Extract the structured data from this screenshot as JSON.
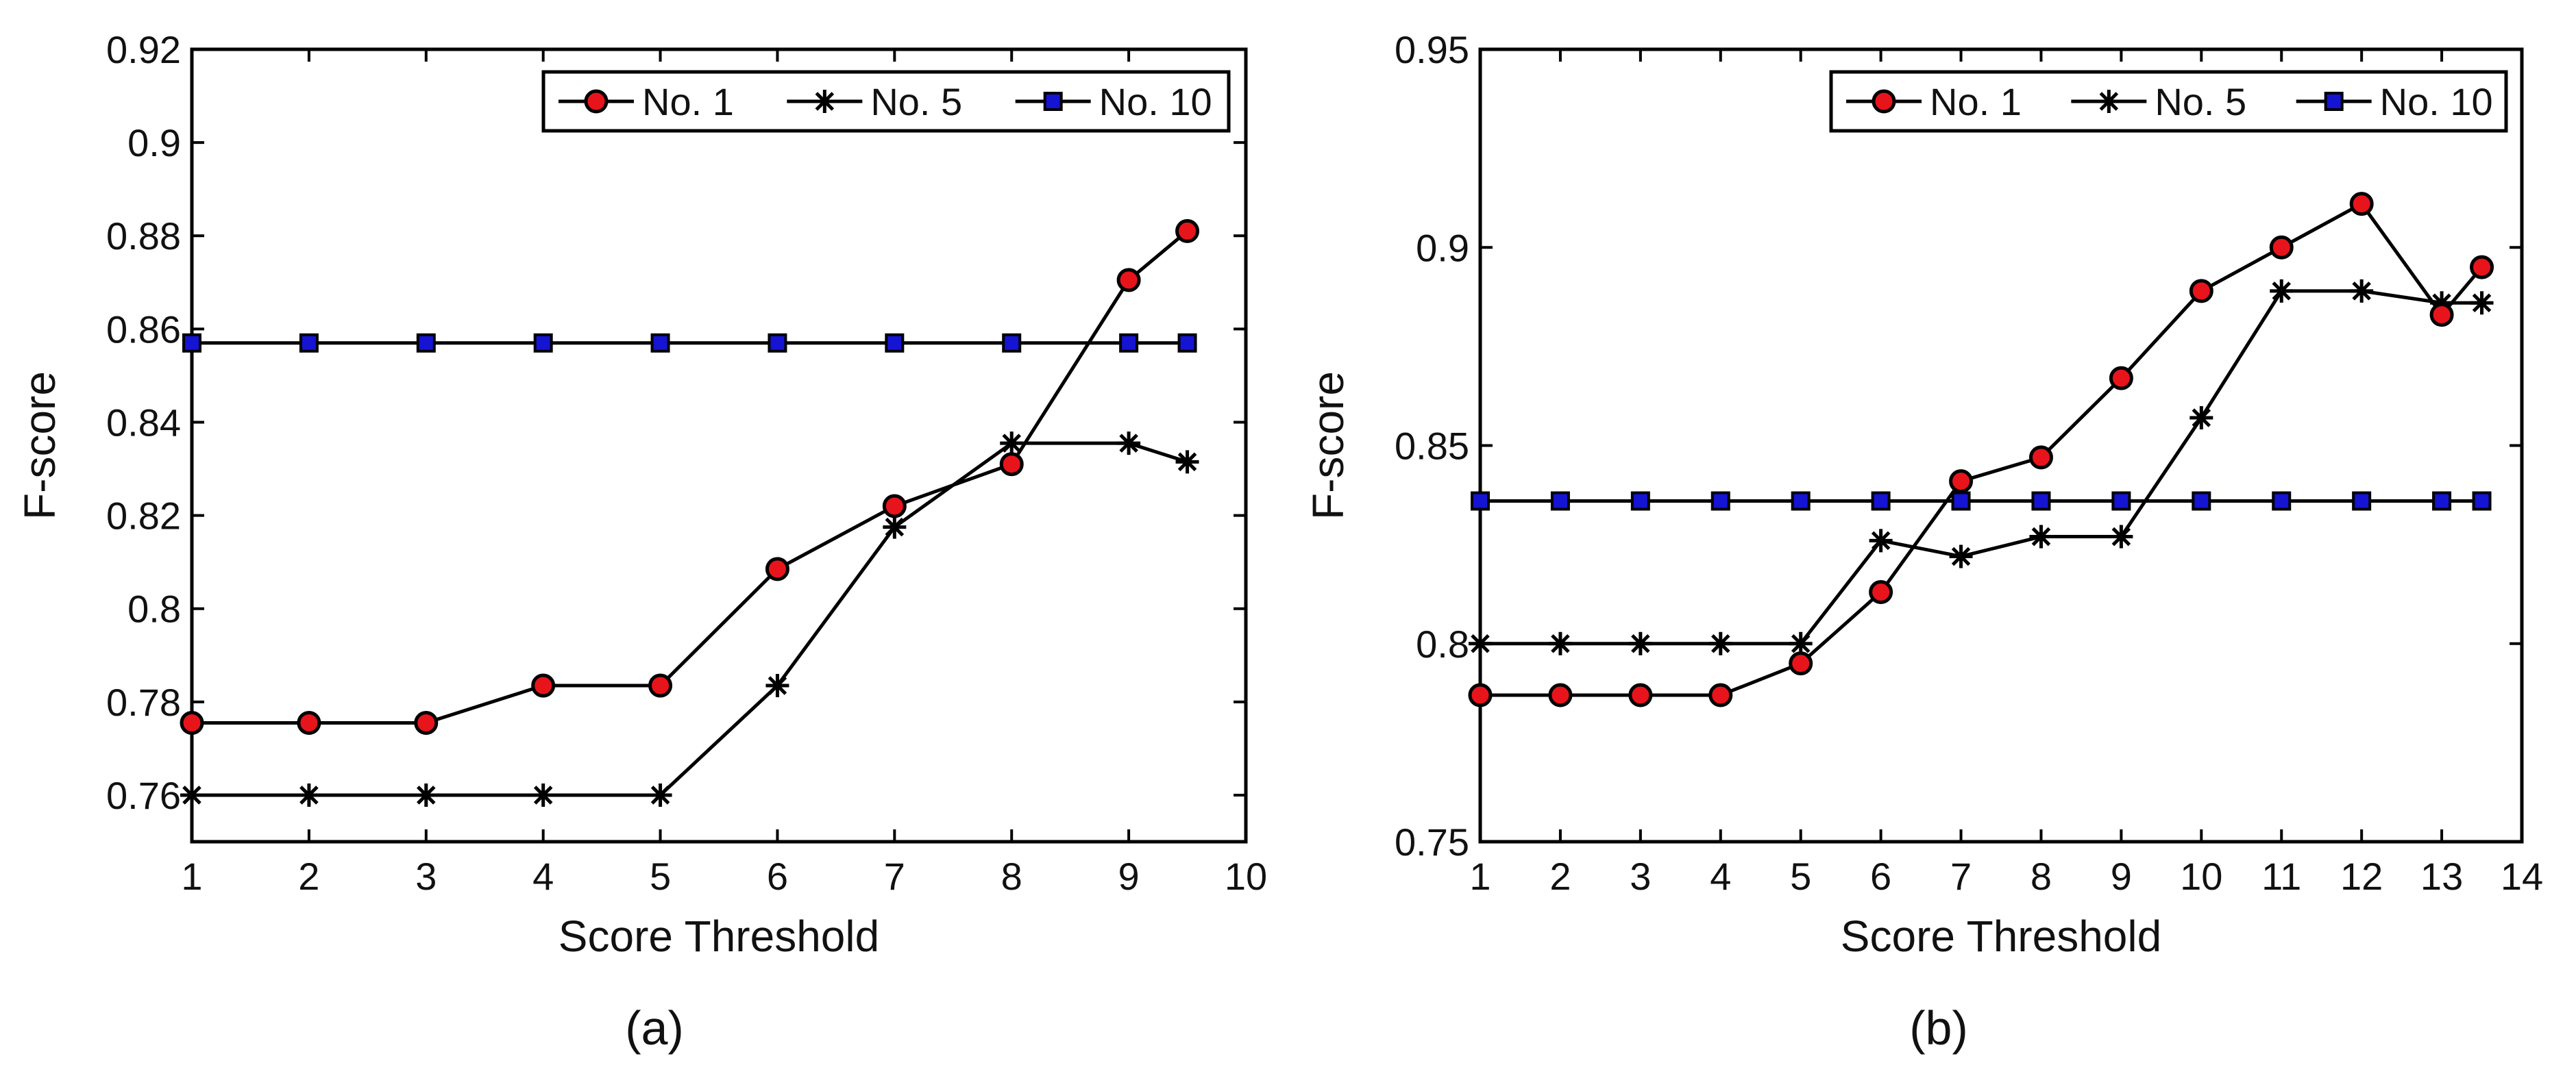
{
  "chart_data": [
    {
      "type": "line",
      "panel_label": "(a)",
      "xlabel": "Score Threshold",
      "ylabel": "F-score",
      "xlim": [
        1,
        10
      ],
      "ylim": [
        0.75,
        0.92
      ],
      "xticks": [
        1,
        2,
        3,
        4,
        5,
        6,
        7,
        8,
        9,
        10
      ],
      "yticks": [
        0.76,
        0.78,
        0.8,
        0.82,
        0.84,
        0.86,
        0.88,
        0.9,
        0.92
      ],
      "ytick_labels": [
        "0.76",
        "0.78",
        "0.8",
        "0.82",
        "0.84",
        "0.86",
        "0.88",
        "0.9",
        "0.92"
      ],
      "legend_position": "top-right",
      "series": [
        {
          "name": "No. 1",
          "marker": "circle",
          "color": "#e8141b",
          "x": [
            1,
            2,
            3,
            4,
            5,
            6,
            7,
            8,
            9,
            9.5
          ],
          "y": [
            0.7755,
            0.7755,
            0.7755,
            0.7835,
            0.7835,
            0.8085,
            0.822,
            0.831,
            0.8705,
            0.881
          ]
        },
        {
          "name": "No. 5",
          "marker": "asterisk",
          "color": "#000000",
          "x": [
            1,
            2,
            3,
            4,
            5,
            6,
            7,
            8,
            9,
            9.5
          ],
          "y": [
            0.76,
            0.76,
            0.76,
            0.76,
            0.76,
            0.7835,
            0.8175,
            0.8355,
            0.8355,
            0.8315
          ]
        },
        {
          "name": "No. 10",
          "marker": "square",
          "color": "#1414d2",
          "x": [
            1,
            2,
            3,
            4,
            5,
            6,
            7,
            8,
            9,
            9.5
          ],
          "y": [
            0.857,
            0.857,
            0.857,
            0.857,
            0.857,
            0.857,
            0.857,
            0.857,
            0.857,
            0.857
          ]
        }
      ]
    },
    {
      "type": "line",
      "panel_label": "(b)",
      "xlabel": "Score Threshold",
      "ylabel": "F-score",
      "xlim": [
        1,
        14
      ],
      "ylim": [
        0.75,
        0.95
      ],
      "xticks": [
        1,
        2,
        3,
        4,
        5,
        6,
        7,
        8,
        9,
        10,
        11,
        12,
        13,
        14
      ],
      "yticks": [
        0.75,
        0.8,
        0.85,
        0.9,
        0.95
      ],
      "ytick_labels": [
        "0.75",
        "0.8",
        "0.85",
        "0.9",
        "0.95"
      ],
      "legend_position": "top-right",
      "series": [
        {
          "name": "No. 1",
          "marker": "circle",
          "color": "#e8141b",
          "x": [
            1,
            2,
            3,
            4,
            5,
            6,
            7,
            8,
            9,
            10,
            11,
            12,
            13,
            13.5
          ],
          "y": [
            0.787,
            0.787,
            0.787,
            0.787,
            0.795,
            0.813,
            0.841,
            0.847,
            0.867,
            0.889,
            0.9,
            0.911,
            0.883,
            0.895
          ]
        },
        {
          "name": "No. 5",
          "marker": "asterisk",
          "color": "#000000",
          "x": [
            1,
            2,
            3,
            4,
            5,
            6,
            7,
            8,
            9,
            10,
            11,
            12,
            13,
            13.5
          ],
          "y": [
            0.8,
            0.8,
            0.8,
            0.8,
            0.8,
            0.826,
            0.822,
            0.827,
            0.827,
            0.857,
            0.889,
            0.889,
            0.886,
            0.886
          ]
        },
        {
          "name": "No. 10",
          "marker": "square",
          "color": "#1414d2",
          "x": [
            1,
            2,
            3,
            4,
            5,
            6,
            7,
            8,
            9,
            10,
            11,
            12,
            13,
            13.5
          ],
          "y": [
            0.836,
            0.836,
            0.836,
            0.836,
            0.836,
            0.836,
            0.836,
            0.836,
            0.836,
            0.836,
            0.836,
            0.836,
            0.836,
            0.836
          ]
        }
      ]
    }
  ]
}
